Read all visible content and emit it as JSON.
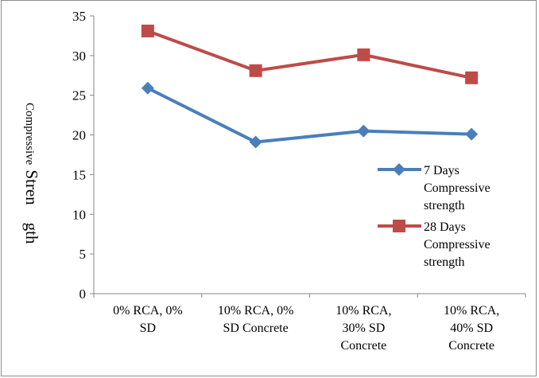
{
  "chart_data": {
    "type": "line",
    "title": "",
    "xlabel": "",
    "ylabel_parts": [
      "Compressive",
      "Stren",
      "gth"
    ],
    "ylim": [
      0,
      35
    ],
    "yticks": [
      0,
      5,
      10,
      15,
      20,
      25,
      30,
      35
    ],
    "grid": false,
    "legend_position": "right",
    "categories": [
      [
        "0% RCA, 0%",
        "SD"
      ],
      [
        "10% RCA, 0%",
        "SD Concrete"
      ],
      [
        "10% RCA,",
        "30% SD",
        "Concrete"
      ],
      [
        "10% RCA,",
        "40% SD",
        "Concrete"
      ]
    ],
    "series": [
      {
        "name_lines": [
          "7 Days",
          "Compressive",
          "strength"
        ],
        "values": [
          25.9,
          19.1,
          20.5,
          20.1
        ],
        "color": "#4a7ebb",
        "marker": "diamond"
      },
      {
        "name_lines": [
          "28 Days",
          "Compressive",
          "strength"
        ],
        "values": [
          33.1,
          28.1,
          30.1,
          27.2
        ],
        "color": "#be4b48",
        "marker": "square"
      }
    ]
  }
}
